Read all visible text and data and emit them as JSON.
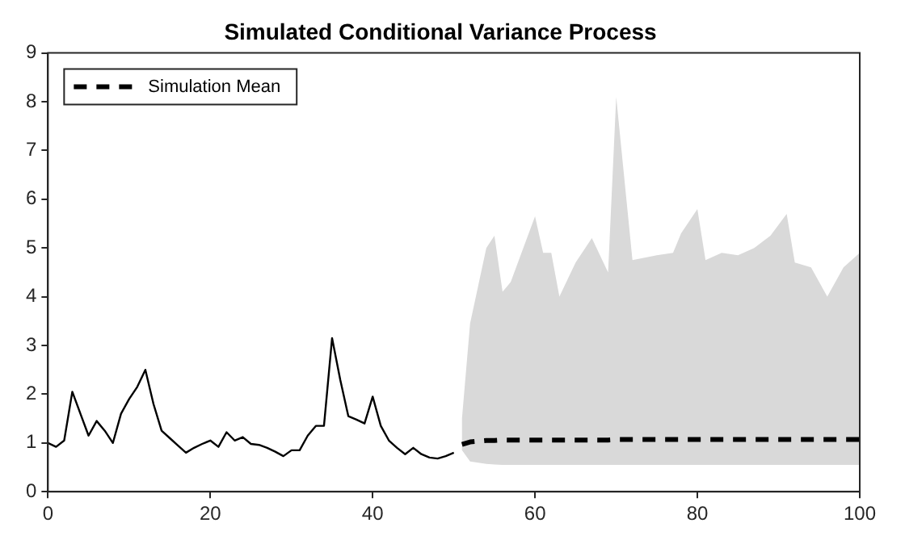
{
  "chart_data": {
    "type": "line",
    "title": "Simulated Conditional Variance Process",
    "xlim": [
      0,
      100
    ],
    "xticks": [
      0,
      20,
      40,
      60,
      80,
      100
    ],
    "ylim": [
      0,
      9
    ],
    "yticks": [
      0,
      1,
      2,
      3,
      4,
      5,
      6,
      7,
      8,
      9
    ],
    "grid": false,
    "legend": "top left",
    "marker": "none",
    "line_style": "solid",
    "series": [
      {
        "type": "line",
        "color": "#000000",
        "x": [
          0,
          1,
          2,
          3,
          4,
          5,
          6,
          7,
          8,
          9,
          10,
          11,
          12,
          13,
          14,
          15,
          16,
          17,
          18,
          19,
          20,
          21,
          22,
          23,
          24,
          25,
          26,
          27,
          28,
          29,
          30,
          31,
          32,
          33,
          34,
          35,
          36,
          37,
          38,
          39,
          40,
          41,
          42,
          43,
          44,
          45,
          46,
          47,
          48,
          49,
          50
        ],
        "values": [
          1.0,
          0.92,
          1.05,
          2.05,
          1.6,
          1.15,
          1.45,
          1.25,
          1.0,
          1.6,
          1.9,
          2.15,
          2.5,
          1.8,
          1.25,
          1.1,
          0.95,
          0.8,
          0.9,
          0.98,
          1.05,
          0.92,
          1.22,
          1.05,
          1.12,
          0.98,
          0.96,
          0.9,
          0.82,
          0.73,
          0.85,
          0.85,
          1.15,
          1.35,
          1.35,
          3.15,
          2.3,
          1.55,
          1.48,
          1.4,
          1.95,
          1.35,
          1.05,
          0.9,
          0.77,
          0.9,
          0.77,
          0.7,
          0.68,
          0.73,
          0.8
        ]
      },
      {
        "type": "line",
        "name": "Simulation Mean",
        "color": "#000000",
        "line_style": "dashed",
        "x": [
          51,
          52,
          54,
          55,
          56,
          57,
          60,
          61,
          62,
          63,
          65,
          67,
          69,
          70,
          72,
          75,
          77,
          78,
          80,
          81,
          83,
          85,
          87,
          89,
          91,
          92,
          94,
          96,
          98,
          100
        ],
        "values": [
          0.97,
          1.02,
          1.05,
          1.05,
          1.06,
          1.06,
          1.06,
          1.06,
          1.06,
          1.06,
          1.06,
          1.06,
          1.06,
          1.07,
          1.07,
          1.07,
          1.07,
          1.07,
          1.07,
          1.07,
          1.07,
          1.07,
          1.07,
          1.07,
          1.07,
          1.07,
          1.07,
          1.07,
          1.07,
          1.07
        ],
        "upper": [
          1.5,
          3.45,
          5.0,
          5.25,
          4.1,
          4.3,
          5.65,
          4.9,
          4.9,
          4.0,
          4.7,
          5.2,
          4.5,
          8.1,
          4.75,
          4.85,
          4.9,
          5.3,
          5.8,
          4.75,
          4.9,
          4.85,
          5.0,
          5.25,
          5.7,
          4.7,
          4.6,
          4.0,
          4.6,
          4.9
        ],
        "lower": [
          0.85,
          0.62,
          0.57,
          0.56,
          0.55,
          0.55,
          0.55,
          0.55,
          0.55,
          0.55,
          0.55,
          0.55,
          0.55,
          0.55,
          0.55,
          0.55,
          0.55,
          0.55,
          0.55,
          0.55,
          0.55,
          0.55,
          0.55,
          0.55,
          0.55,
          0.55,
          0.55,
          0.55,
          0.55,
          0.55
        ]
      }
    ]
  }
}
